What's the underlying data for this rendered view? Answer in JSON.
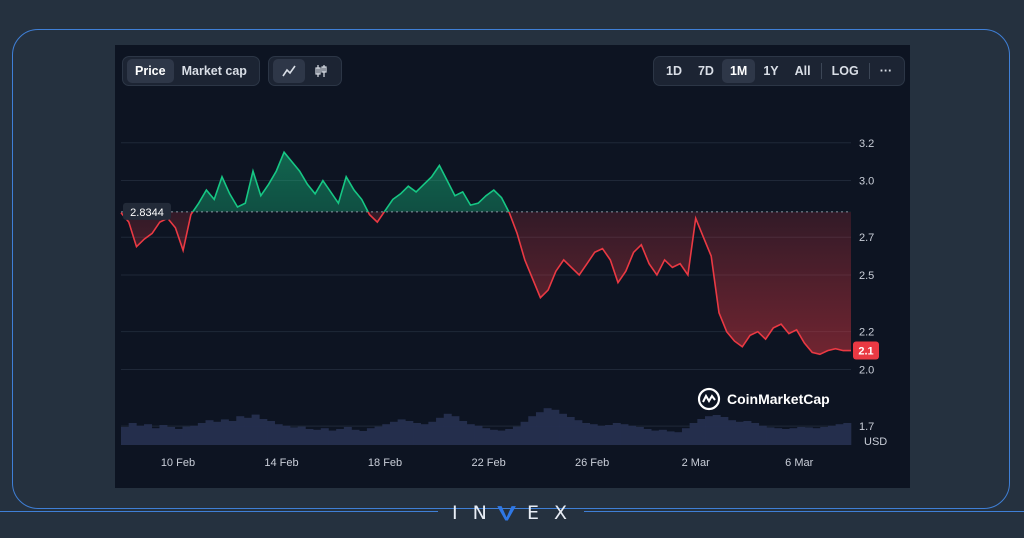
{
  "toolbar": {
    "left_tabs": [
      {
        "label": "Price",
        "active": true
      },
      {
        "label": "Market cap",
        "active": false
      }
    ],
    "view_icons": [
      {
        "icon": "line-chart-icon",
        "active": true
      },
      {
        "icon": "candlestick-icon",
        "active": false
      }
    ],
    "ranges": [
      {
        "label": "1D",
        "active": false
      },
      {
        "label": "7D",
        "active": false
      },
      {
        "label": "1M",
        "active": true
      },
      {
        "label": "1Y",
        "active": false
      },
      {
        "label": "All",
        "active": false
      }
    ],
    "log_label": "LOG",
    "more_label": "···"
  },
  "watermark": "CoinMarketCap",
  "brand": {
    "text_left": "IN",
    "text_right": "EX",
    "mark_icon": "v-logo-icon"
  },
  "colors": {
    "up": "#16c784",
    "down": "#ea3943",
    "background": "#0d1422",
    "frame": "#3f7fd6"
  },
  "chart_data": {
    "type": "line",
    "baseline_label": "2.8344",
    "baseline_value": 2.8344,
    "current_label": "2.1",
    "current_value": 2.1,
    "y_unit_label": "USD",
    "y_ticks": [
      "3.2",
      "3.0",
      "2.7",
      "2.5",
      "2.2",
      "2.0",
      "1.7"
    ],
    "x_ticks": [
      "10 Feb",
      "14 Feb",
      "18 Feb",
      "22 Feb",
      "26 Feb",
      "2 Mar",
      "6 Mar"
    ],
    "ylim": [
      1.6,
      3.4
    ],
    "x_range_days": [
      7.8,
      36.0
    ],
    "x": [
      7.8,
      8.1,
      8.4,
      8.7,
      9.0,
      9.3,
      9.6,
      9.9,
      10.2,
      10.5,
      10.8,
      11.1,
      11.4,
      11.7,
      12.0,
      12.3,
      12.6,
      12.9,
      13.2,
      13.5,
      13.8,
      14.1,
      14.4,
      14.7,
      15.0,
      15.3,
      15.6,
      15.9,
      16.2,
      16.5,
      16.8,
      17.1,
      17.4,
      17.7,
      18.0,
      18.3,
      18.6,
      18.9,
      19.2,
      19.5,
      19.8,
      20.1,
      20.4,
      20.7,
      21.0,
      21.3,
      21.6,
      21.9,
      22.2,
      22.5,
      22.8,
      23.1,
      23.4,
      23.7,
      24.0,
      24.3,
      24.6,
      24.9,
      25.2,
      25.5,
      25.8,
      26.1,
      26.4,
      26.7,
      27.0,
      27.3,
      27.6,
      27.9,
      28.2,
      28.5,
      28.8,
      29.1,
      29.4,
      29.7,
      30.0,
      30.3,
      30.6,
      30.9,
      31.2,
      31.5,
      31.8,
      32.1,
      32.4,
      32.7,
      33.0,
      33.3,
      33.6,
      33.9,
      34.2,
      34.5,
      34.8,
      35.1,
      35.4,
      35.7,
      36.0
    ],
    "y": [
      2.83,
      2.78,
      2.65,
      2.69,
      2.72,
      2.78,
      2.8,
      2.75,
      2.63,
      2.82,
      2.88,
      2.95,
      2.9,
      3.02,
      2.93,
      2.86,
      2.88,
      3.05,
      2.92,
      2.98,
      3.05,
      3.15,
      3.1,
      3.05,
      2.98,
      2.93,
      3.0,
      2.94,
      2.88,
      3.02,
      2.95,
      2.9,
      2.82,
      2.78,
      2.84,
      2.9,
      2.93,
      2.97,
      2.94,
      2.98,
      3.02,
      3.08,
      3.0,
      2.92,
      2.94,
      2.87,
      2.88,
      2.92,
      2.95,
      2.91,
      2.83,
      2.72,
      2.58,
      2.48,
      2.38,
      2.42,
      2.52,
      2.58,
      2.54,
      2.5,
      2.56,
      2.62,
      2.64,
      2.58,
      2.46,
      2.52,
      2.62,
      2.66,
      2.56,
      2.5,
      2.58,
      2.54,
      2.56,
      2.5,
      2.8,
      2.7,
      2.6,
      2.3,
      2.2,
      2.15,
      2.12,
      2.18,
      2.2,
      2.16,
      2.22,
      2.24,
      2.19,
      2.21,
      2.14,
      2.09,
      2.08,
      2.1,
      2.11,
      2.1,
      2.1
    ],
    "volume": [
      0.45,
      0.55,
      0.48,
      0.52,
      0.42,
      0.5,
      0.45,
      0.4,
      0.46,
      0.48,
      0.55,
      0.62,
      0.58,
      0.64,
      0.6,
      0.72,
      0.68,
      0.76,
      0.65,
      0.6,
      0.52,
      0.48,
      0.44,
      0.46,
      0.4,
      0.38,
      0.42,
      0.36,
      0.4,
      0.45,
      0.38,
      0.35,
      0.42,
      0.46,
      0.52,
      0.58,
      0.64,
      0.6,
      0.55,
      0.52,
      0.58,
      0.68,
      0.78,
      0.72,
      0.6,
      0.52,
      0.48,
      0.42,
      0.38,
      0.36,
      0.4,
      0.46,
      0.58,
      0.72,
      0.82,
      0.92,
      0.88,
      0.78,
      0.7,
      0.62,
      0.55,
      0.52,
      0.48,
      0.5,
      0.55,
      0.52,
      0.48,
      0.45,
      0.4,
      0.36,
      0.38,
      0.34,
      0.32,
      0.42,
      0.55,
      0.65,
      0.72,
      0.75,
      0.7,
      0.62,
      0.58,
      0.6,
      0.55,
      0.48,
      0.44,
      0.42,
      0.4,
      0.42,
      0.45,
      0.44,
      0.42,
      0.45,
      0.48,
      0.52,
      0.55
    ]
  }
}
